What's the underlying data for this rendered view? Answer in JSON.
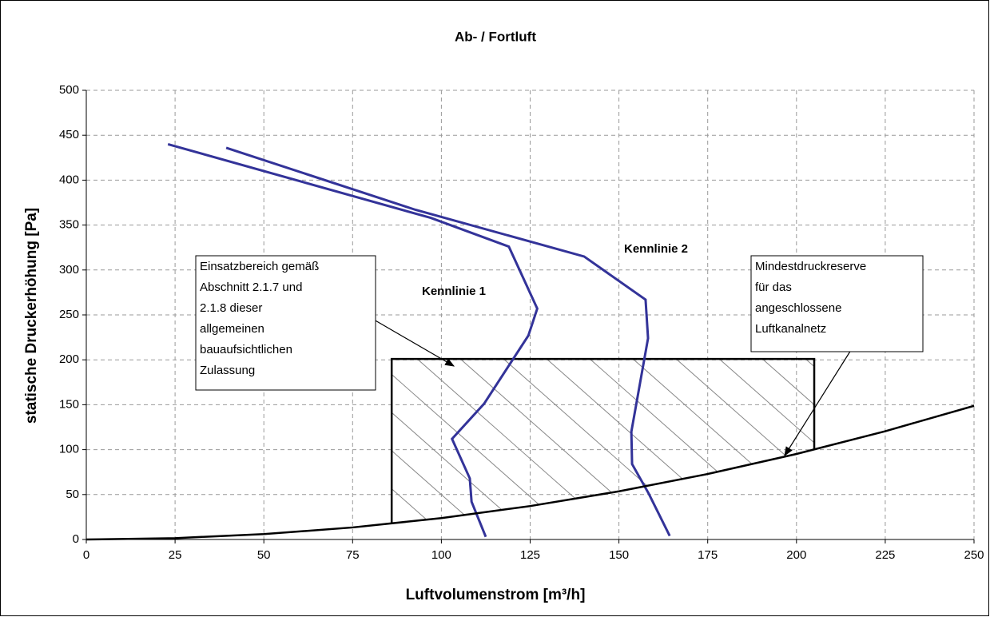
{
  "chart_data": {
    "type": "line",
    "title": "Ab- / Fortluft",
    "xlabel": "Luftvolumenstrom [m³/h]",
    "ylabel": "statische Druckerhöhung [Pa]",
    "xlim": [
      0,
      250
    ],
    "ylim": [
      0,
      500
    ],
    "xticks": [
      0,
      25,
      50,
      75,
      100,
      125,
      150,
      175,
      200,
      225,
      250
    ],
    "yticks": [
      0,
      50,
      100,
      150,
      200,
      250,
      300,
      350,
      400,
      450,
      500
    ],
    "grid": true,
    "series": [
      {
        "name": "Kennlinie 1",
        "color": "#333399",
        "x": [
          23,
          97,
          119,
          127,
          124.5,
          112,
          103,
          108,
          108.5,
          112.5
        ],
        "values": [
          440,
          358,
          326,
          257,
          227,
          151,
          112,
          68,
          42,
          3
        ]
      },
      {
        "name": "Kennlinie 2",
        "color": "#333399",
        "x": [
          39.4,
          92.7,
          140.2,
          157.5,
          158.2,
          153.5,
          153.7,
          158.4,
          164.3
        ],
        "values": [
          436,
          367,
          315,
          267,
          224,
          120,
          84,
          51,
          4
        ]
      },
      {
        "color": "#000000",
        "x": [
          0,
          25,
          50,
          75,
          100,
          125,
          150,
          175,
          200,
          225,
          250
        ],
        "values": [
          0,
          1.5,
          6,
          13.4,
          23.8,
          37.2,
          53.6,
          72.9,
          95.2,
          120.5,
          148.8
        ]
      }
    ],
    "region": {
      "x": [
        86,
        205
      ],
      "ymax": 201
    },
    "annotations": [
      {
        "lines": [
          "Einsatzbereich  gemäß",
          "Abschnitt 2.1.7 und",
          "2.1.8 dieser",
          "allgemeinen",
          "bauaufsichtlichen",
          "Zulassung"
        ]
      },
      {
        "lines": [
          "Mindestdruckreserve",
          "für das",
          "angeschlossene",
          "Luftkanalnetz"
        ]
      }
    ]
  }
}
